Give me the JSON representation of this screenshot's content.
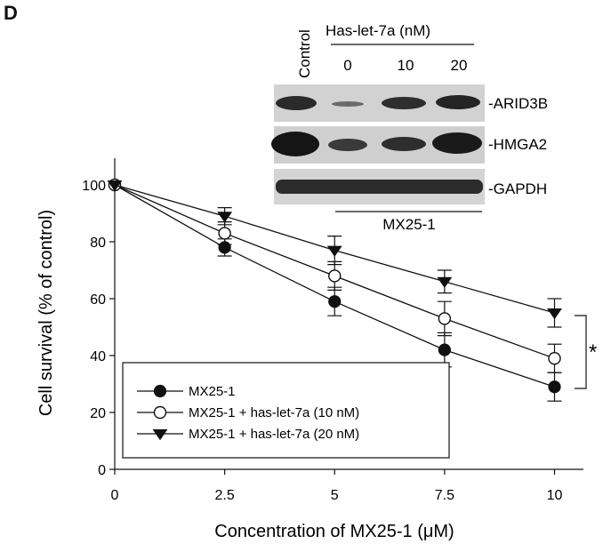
{
  "panel_label": "D",
  "blot": {
    "control_label": "Control",
    "treatment_label": "Has-let-7a  (nM)",
    "doses": [
      "0",
      "10",
      "20"
    ],
    "bands": [
      "-ARID3B",
      "-HMGA2",
      "-GAPDH"
    ],
    "cell_line_label": "MX25-1"
  },
  "significance_marker": "*",
  "chart_data": {
    "type": "line",
    "xlabel": "Concentration of MX25-1 (μM)",
    "ylabel": "Cell survival (% of control)",
    "x": [
      0,
      2.5,
      5,
      7.5,
      10
    ],
    "x_tick_labels": [
      "0",
      "2.5",
      "5",
      "7.5",
      "10"
    ],
    "xlim": [
      0,
      10.5
    ],
    "ylim": [
      0,
      110
    ],
    "y_ticks": [
      0,
      20,
      40,
      60,
      80,
      100
    ],
    "grid": false,
    "legend_position": "bottom-left",
    "series": [
      {
        "name": "MX25-1",
        "marker": "filled-circle",
        "values": [
          100,
          78,
          59,
          42,
          29
        ],
        "errors": [
          0,
          3,
          5,
          6,
          5
        ]
      },
      {
        "name": "MX25-1 + has-let-7a (10 nM)",
        "marker": "open-circle",
        "values": [
          100,
          83,
          68,
          53,
          39
        ],
        "errors": [
          0,
          4,
          5,
          6,
          5
        ]
      },
      {
        "name": "MX25-1 + has-let-7a (20 nM)",
        "marker": "filled-triangle-down",
        "values": [
          100,
          89,
          77,
          66,
          55
        ],
        "errors": [
          0,
          3,
          5,
          4,
          5
        ]
      }
    ]
  }
}
